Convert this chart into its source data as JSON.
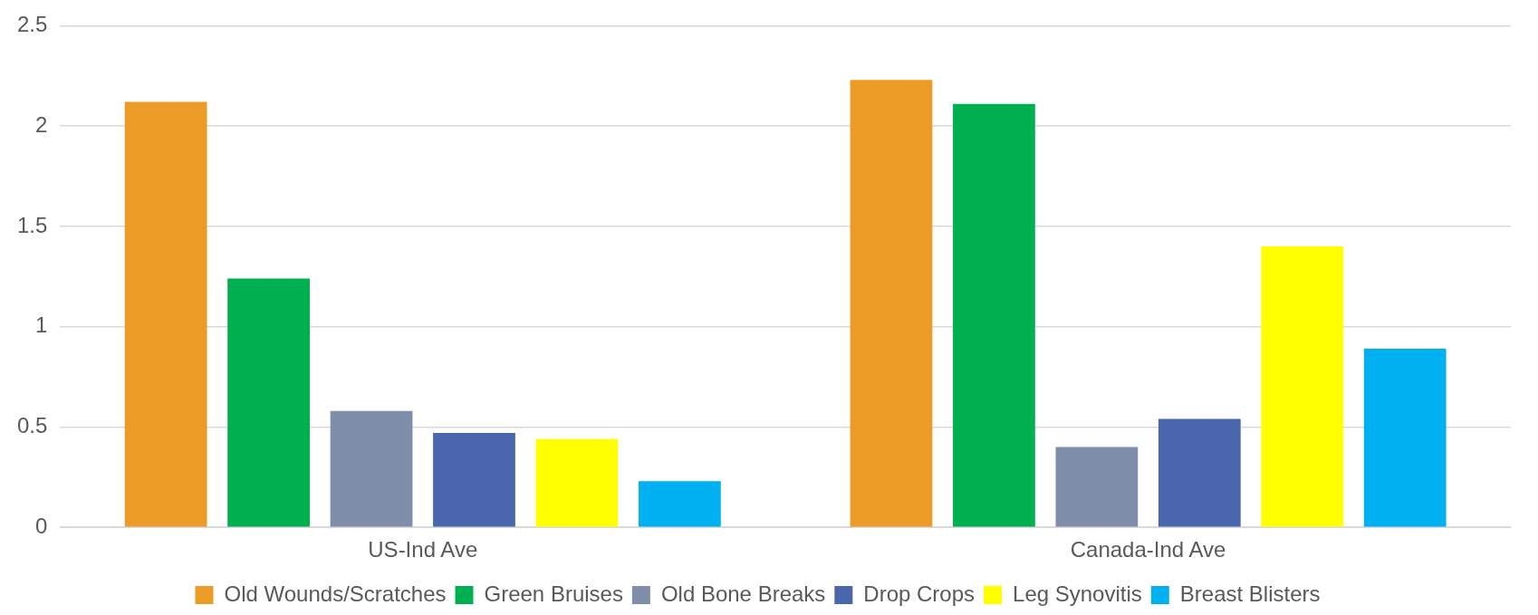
{
  "chart_data": {
    "type": "bar",
    "categories": [
      "US-Ind Ave",
      "Canada-Ind Ave"
    ],
    "series": [
      {
        "name": "Old Wounds/Scratches",
        "color": "#ec9b26",
        "values": [
          2.12,
          2.23
        ]
      },
      {
        "name": "Green Bruises",
        "color": "#00b050",
        "values": [
          1.24,
          2.11
        ]
      },
      {
        "name": "Old Bone Breaks",
        "color": "#7f8fa9",
        "values": [
          0.58,
          0.4
        ]
      },
      {
        "name": "Drop Crops",
        "color": "#4a66ac",
        "values": [
          0.47,
          0.54
        ]
      },
      {
        "name": "Leg Synovitis",
        "color": "#ffff00",
        "values": [
          0.44,
          1.4
        ]
      },
      {
        "name": "Breast Blisters",
        "color": "#00b0f0",
        "values": [
          0.23,
          0.89
        ]
      }
    ],
    "ylim": [
      0,
      2.5
    ],
    "yticks": [
      0,
      0.5,
      1,
      1.5,
      2,
      2.5
    ],
    "grid": "y",
    "legend": "bottom"
  }
}
